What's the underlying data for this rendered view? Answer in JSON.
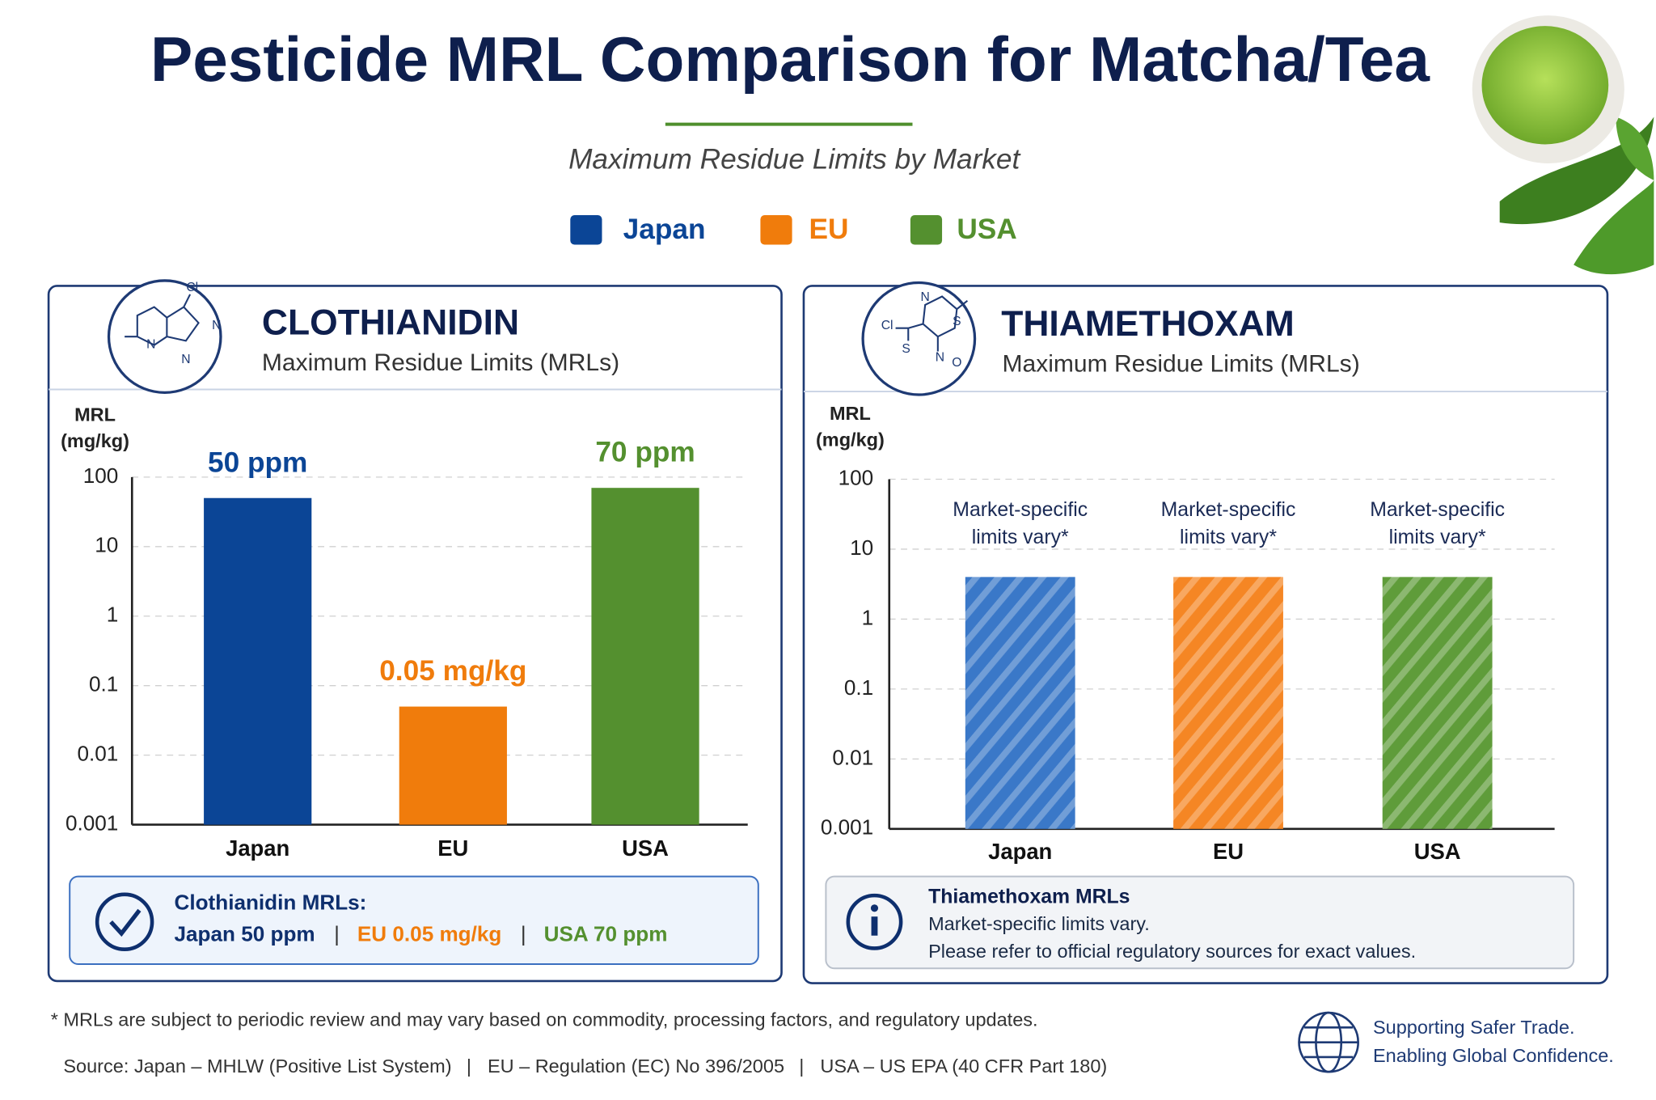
{
  "header": {
    "title": "Pesticide MRL Comparison for Matcha/Tea",
    "subtitle": "Maximum Residue Limits by Market"
  },
  "legend": {
    "items": [
      {
        "name": "Japan",
        "color": "#0b4596"
      },
      {
        "name": "EU",
        "color": "#f07c0c"
      },
      {
        "name": "USA",
        "color": "#54902f"
      }
    ]
  },
  "chart_data": [
    {
      "type": "bar",
      "title": "CLOTHIANIDIN",
      "subtitle": "Maximum Residue Limits (MRLs)",
      "ylabel": [
        "MRL",
        "(mg/kg)"
      ],
      "molecule_labels": [
        "Cl",
        "N",
        "N",
        "N"
      ],
      "categories": [
        "Japan",
        "EU",
        "USA"
      ],
      "values": [
        50,
        0.05,
        70
      ],
      "value_labels": [
        "50 ppm",
        "0.05 mg/kg",
        "70 ppm"
      ],
      "colors": [
        "#0b4596",
        "#f07c0c",
        "#54902f"
      ],
      "hatch": false,
      "log_y": true,
      "grid": true,
      "ylim": [
        0.001,
        100
      ],
      "yticks": [
        0.001,
        0.01,
        0.1,
        1,
        10,
        100
      ]
    },
    {
      "type": "bar",
      "title": "THIAMETHOXAM",
      "subtitle": "Maximum Residue Limits (MRLs)",
      "ylabel": [
        "MRL",
        "(mg/kg)"
      ],
      "molecule_labels": [
        "N",
        "S",
        "Cl",
        "S",
        "N",
        "O"
      ],
      "categories": [
        "Japan",
        "EU",
        "USA"
      ],
      "values": [
        4,
        4,
        4
      ],
      "value_labels": [
        "Market-specific limits vary*",
        "Market-specific limits vary*",
        "Market-specific limits vary*"
      ],
      "colors": [
        "#3a78c8",
        "#f58624",
        "#5f9c3a"
      ],
      "hatch": true,
      "log_y": true,
      "grid": true,
      "ylim": [
        0.001,
        100
      ],
      "yticks": [
        0.001,
        0.01,
        0.1,
        1,
        10,
        100
      ]
    }
  ],
  "summaries": [
    {
      "title": "Clothianidin MRLs:",
      "items": [
        "Japan 50 ppm",
        "EU 0.05 mg/kg",
        "USA 70 ppm"
      ],
      "separator": "|"
    },
    {
      "title": "Thiamethoxam MRLs",
      "lines": [
        "Market-specific limits vary.",
        "Please refer to official regulatory sources for exact values."
      ]
    }
  ],
  "footer": {
    "note": "* MRLs are subject to periodic review and may vary based on commodity, processing factors, and regulatory updates.",
    "sources": [
      "Source: Japan – MHLW (Positive List System)",
      "EU – Regulation (EC) No 396/2005",
      "USA – US EPA (40 CFR Part 180)"
    ],
    "separator": "|",
    "tagline": [
      "Supporting Safer Trade.",
      "Enabling Global Confidence."
    ]
  }
}
